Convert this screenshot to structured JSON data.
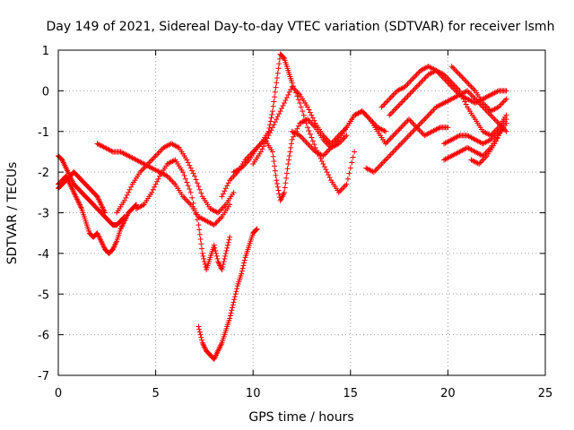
{
  "chart_data": {
    "type": "scatter",
    "title": "Day 149 of 2021, Sidereal Day-to-day VTEC variation (SDTVAR) for receiver lsmh",
    "xlabel": "GPS time / hours",
    "ylabel": "SDTVAR / TECUs",
    "xlim": [
      0,
      25
    ],
    "ylim": [
      -7,
      1
    ],
    "xticks": [
      "0",
      "5",
      "10",
      "15",
      "20",
      "25"
    ],
    "yticks": [
      "1",
      "0",
      "-1",
      "-2",
      "-3",
      "-4",
      "-5",
      "-6",
      "-7"
    ],
    "grid": true,
    "marker": "plus",
    "color": "#ff0000",
    "series": [
      {
        "x": [
          0.0,
          0.2,
          0.4,
          0.6,
          0.8,
          1.0,
          1.2,
          1.4,
          1.6,
          1.8,
          2.0,
          2.2,
          2.4,
          2.6,
          2.8,
          3.0,
          3.2,
          3.4,
          3.6,
          3.8,
          4.0
        ],
        "y": [
          -2.3,
          -2.2,
          -2.1,
          -2.3,
          -2.5,
          -2.7,
          -2.9,
          -3.2,
          -3.5,
          -3.6,
          -3.5,
          -3.7,
          -3.9,
          -4.0,
          -3.9,
          -3.7,
          -3.4,
          -3.2,
          -3.0,
          -2.9,
          -2.8
        ]
      },
      {
        "x": [
          0.0,
          0.2,
          0.4,
          0.6,
          0.8,
          1.0,
          1.2,
          1.4,
          1.6,
          1.8,
          2.0,
          2.2,
          2.4,
          2.6,
          2.8,
          3.0,
          3.2,
          3.4
        ],
        "y": [
          -1.6,
          -1.7,
          -1.9,
          -2.1,
          -2.3,
          -2.4,
          -2.5,
          -2.6,
          -2.7,
          -2.8,
          -2.9,
          -3.0,
          -3.1,
          -3.2,
          -3.3,
          -3.3,
          -3.2,
          -3.1
        ]
      },
      {
        "x": [
          0.0,
          0.2,
          0.4,
          0.6,
          0.8,
          1.0,
          1.2,
          1.4,
          1.6,
          1.8,
          2.0,
          2.2,
          2.4
        ],
        "y": [
          -2.4,
          -2.3,
          -2.2,
          -2.1,
          -2.0,
          -2.1,
          -2.2,
          -2.3,
          -2.4,
          -2.5,
          -2.6,
          -2.8,
          -3.0
        ]
      },
      {
        "x": [
          2.0,
          2.4,
          2.8,
          3.2,
          3.6,
          4.0,
          4.4,
          4.8,
          5.2,
          5.6,
          6.0,
          6.4,
          6.8,
          7.2,
          7.6,
          8.0,
          8.4,
          8.8
        ],
        "y": [
          -1.3,
          -1.4,
          -1.5,
          -1.5,
          -1.6,
          -1.7,
          -1.8,
          -1.9,
          -2.0,
          -2.1,
          -2.3,
          -2.6,
          -2.8,
          -3.1,
          -3.2,
          -3.3,
          -3.1,
          -2.8
        ]
      },
      {
        "x": [
          3.0,
          3.4,
          3.8,
          4.2,
          4.6,
          5.0,
          5.4,
          5.8,
          6.2,
          6.6,
          7.0,
          7.4,
          7.8,
          8.2,
          8.6,
          9.0
        ],
        "y": [
          -3.0,
          -2.7,
          -2.3,
          -2.0,
          -1.8,
          -1.6,
          -1.4,
          -1.3,
          -1.4,
          -1.7,
          -2.1,
          -2.6,
          -2.9,
          -3.0,
          -2.8,
          -2.5
        ]
      },
      {
        "x": [
          4.0,
          4.4,
          4.8,
          5.2,
          5.6,
          6.0,
          6.4,
          6.8,
          7.2,
          7.4,
          7.6,
          7.8,
          8.0,
          8.2,
          8.4,
          8.6,
          8.8
        ],
        "y": [
          -2.9,
          -2.8,
          -2.5,
          -2.1,
          -1.8,
          -1.7,
          -2.0,
          -2.5,
          -3.3,
          -4.0,
          -4.4,
          -4.1,
          -3.8,
          -4.2,
          -4.4,
          -4.0,
          -3.6
        ]
      },
      {
        "x": [
          7.2,
          7.4,
          7.6,
          7.8,
          8.0,
          8.2,
          8.4,
          8.6,
          8.8,
          9.0,
          9.2,
          9.4,
          9.6,
          9.8,
          10.0,
          10.2
        ],
        "y": [
          -5.8,
          -6.2,
          -6.4,
          -6.5,
          -6.6,
          -6.4,
          -6.2,
          -5.9,
          -5.6,
          -5.2,
          -4.8,
          -4.5,
          -4.1,
          -3.8,
          -3.5,
          -3.4
        ]
      },
      {
        "x": [
          8.4,
          8.8,
          9.2,
          9.6,
          10.0,
          10.4,
          10.8,
          11.0,
          11.2,
          11.4,
          11.6,
          11.8,
          12.0,
          12.4,
          12.8,
          13.2,
          13.6,
          14.0,
          14.4,
          14.8,
          15.2
        ],
        "y": [
          -2.6,
          -2.2,
          -2.0,
          -1.7,
          -1.5,
          -1.3,
          -1.0,
          -0.5,
          0.2,
          0.9,
          0.8,
          0.5,
          0.2,
          -0.3,
          -0.9,
          -1.4,
          -1.8,
          -2.2,
          -2.5,
          -2.3,
          -1.5
        ]
      },
      {
        "x": [
          9.0,
          9.4,
          9.8,
          10.2,
          10.6,
          11.0,
          11.2,
          11.4,
          11.6,
          11.8,
          12.0,
          12.4,
          12.8,
          13.2,
          13.6,
          14.0,
          14.4,
          14.8
        ],
        "y": [
          -2.0,
          -1.9,
          -1.7,
          -1.4,
          -1.2,
          -1.5,
          -2.2,
          -2.7,
          -2.5,
          -1.8,
          -1.2,
          -0.8,
          -0.7,
          -0.9,
          -1.2,
          -1.4,
          -1.3,
          -1.1
        ]
      },
      {
        "x": [
          10.0,
          10.4,
          10.8,
          11.2,
          11.6,
          12.0,
          12.4,
          12.8,
          13.2,
          13.6,
          14.0,
          14.4,
          14.8,
          15.2,
          15.6,
          16.0,
          16.4,
          16.8
        ],
        "y": [
          -1.8,
          -1.5,
          -1.1,
          -0.7,
          -0.3,
          0.1,
          -0.1,
          -0.4,
          -0.8,
          -1.1,
          -1.3,
          -1.1,
          -0.9,
          -0.6,
          -0.5,
          -0.7,
          -0.9,
          -1.0
        ]
      },
      {
        "x": [
          12.0,
          12.4,
          12.8,
          13.2,
          13.6,
          14.0,
          14.4,
          14.8,
          15.2,
          15.6,
          16.0,
          16.4,
          16.8,
          17.2,
          17.6,
          18.0,
          18.4,
          18.8,
          19.2,
          19.6,
          20.0
        ],
        "y": [
          -1.0,
          -1.1,
          -1.3,
          -1.5,
          -1.6,
          -1.4,
          -1.2,
          -0.9,
          -0.6,
          -0.5,
          -0.7,
          -1.0,
          -1.3,
          -1.1,
          -0.9,
          -0.7,
          -0.9,
          -1.1,
          -1.0,
          -0.9,
          -0.9
        ]
      },
      {
        "x": [
          15.8,
          16.2,
          16.6,
          17.0,
          17.4,
          17.8,
          18.2,
          18.6,
          19.0,
          19.4,
          19.8,
          20.2,
          20.6,
          21.0,
          21.4,
          21.8,
          22.2,
          22.6,
          23.0
        ],
        "y": [
          -1.9,
          -2.0,
          -1.8,
          -1.6,
          -1.4,
          -1.2,
          -1.0,
          -0.8,
          -0.6,
          -0.4,
          -0.3,
          -0.2,
          -0.1,
          0.0,
          -0.2,
          -0.4,
          -0.6,
          -0.8,
          -1.0
        ]
      },
      {
        "x": [
          16.6,
          17.0,
          17.4,
          17.8,
          18.2,
          18.6,
          19.0,
          19.4,
          19.8,
          20.2,
          20.6,
          21.0,
          21.4,
          21.8,
          22.2,
          22.6,
          23.0
        ],
        "y": [
          -0.4,
          -0.2,
          0.0,
          0.1,
          0.3,
          0.5,
          0.6,
          0.5,
          0.3,
          0.1,
          -0.1,
          -0.2,
          -0.3,
          -0.2,
          -0.1,
          0.0,
          0.0
        ]
      },
      {
        "x": [
          17.0,
          17.4,
          17.8,
          18.2,
          18.6,
          19.0,
          19.4,
          19.8,
          20.2,
          20.6,
          21.0,
          21.4,
          21.8,
          22.2,
          22.6,
          23.0
        ],
        "y": [
          -0.6,
          -0.4,
          -0.2,
          0.0,
          0.2,
          0.4,
          0.5,
          0.4,
          0.2,
          0.0,
          -0.4,
          -0.7,
          -1.0,
          -1.1,
          -0.9,
          -0.6
        ]
      },
      {
        "x": [
          19.8,
          20.2,
          20.6,
          21.0,
          21.4,
          21.8,
          22.2,
          22.6,
          23.0
        ],
        "y": [
          -1.7,
          -1.6,
          -1.5,
          -1.4,
          -1.5,
          -1.6,
          -1.4,
          -1.1,
          -0.8
        ]
      },
      {
        "x": [
          19.8,
          20.2,
          20.6,
          21.0,
          21.4,
          21.8,
          22.2,
          22.6,
          23.0
        ],
        "y": [
          -1.3,
          -1.2,
          -1.1,
          -1.1,
          -1.2,
          -1.3,
          -1.2,
          -1.0,
          -0.7
        ]
      },
      {
        "x": [
          20.2,
          20.6,
          21.0,
          21.4,
          21.8,
          22.2,
          22.6,
          23.0
        ],
        "y": [
          0.6,
          0.4,
          0.2,
          0.0,
          -0.3,
          -0.5,
          -0.4,
          -0.2
        ]
      },
      {
        "x": [
          21.2,
          21.6,
          22.0,
          22.4,
          22.8
        ],
        "y": [
          -1.7,
          -1.8,
          -1.6,
          -1.3,
          -0.9
        ]
      }
    ]
  }
}
